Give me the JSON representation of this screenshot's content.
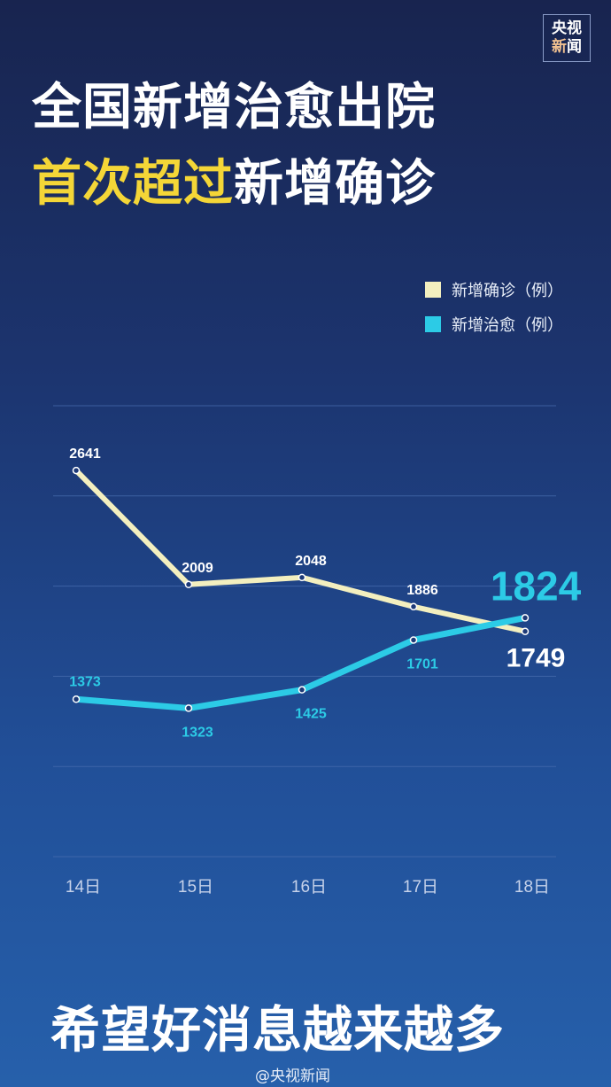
{
  "logo": {
    "line1": "央视",
    "line2a": "新",
    "line2b": "闻"
  },
  "headline": {
    "line1": "全国新增治愈出院",
    "line2_highlight": "首次超过",
    "line2_rest": "新增确诊"
  },
  "slogan": "希望好消息越来越多",
  "watermark": "@央视新闻",
  "colors": {
    "confirmed": "#f3efbf",
    "cured": "#2ccbe6",
    "highlight": "#f4d637"
  },
  "chart_data": {
    "type": "line",
    "categories": [
      "14日",
      "15日",
      "16日",
      "17日",
      "18日"
    ],
    "series": [
      {
        "name": "新增确诊（例）",
        "values": [
          2641,
          2009,
          2048,
          1886,
          1749
        ]
      },
      {
        "name": "新增治愈（例）",
        "values": [
          1373,
          1323,
          1425,
          1701,
          1824
        ]
      }
    ],
    "ylim": [
      500,
      3000
    ],
    "grid": true,
    "legend": "top-right"
  }
}
